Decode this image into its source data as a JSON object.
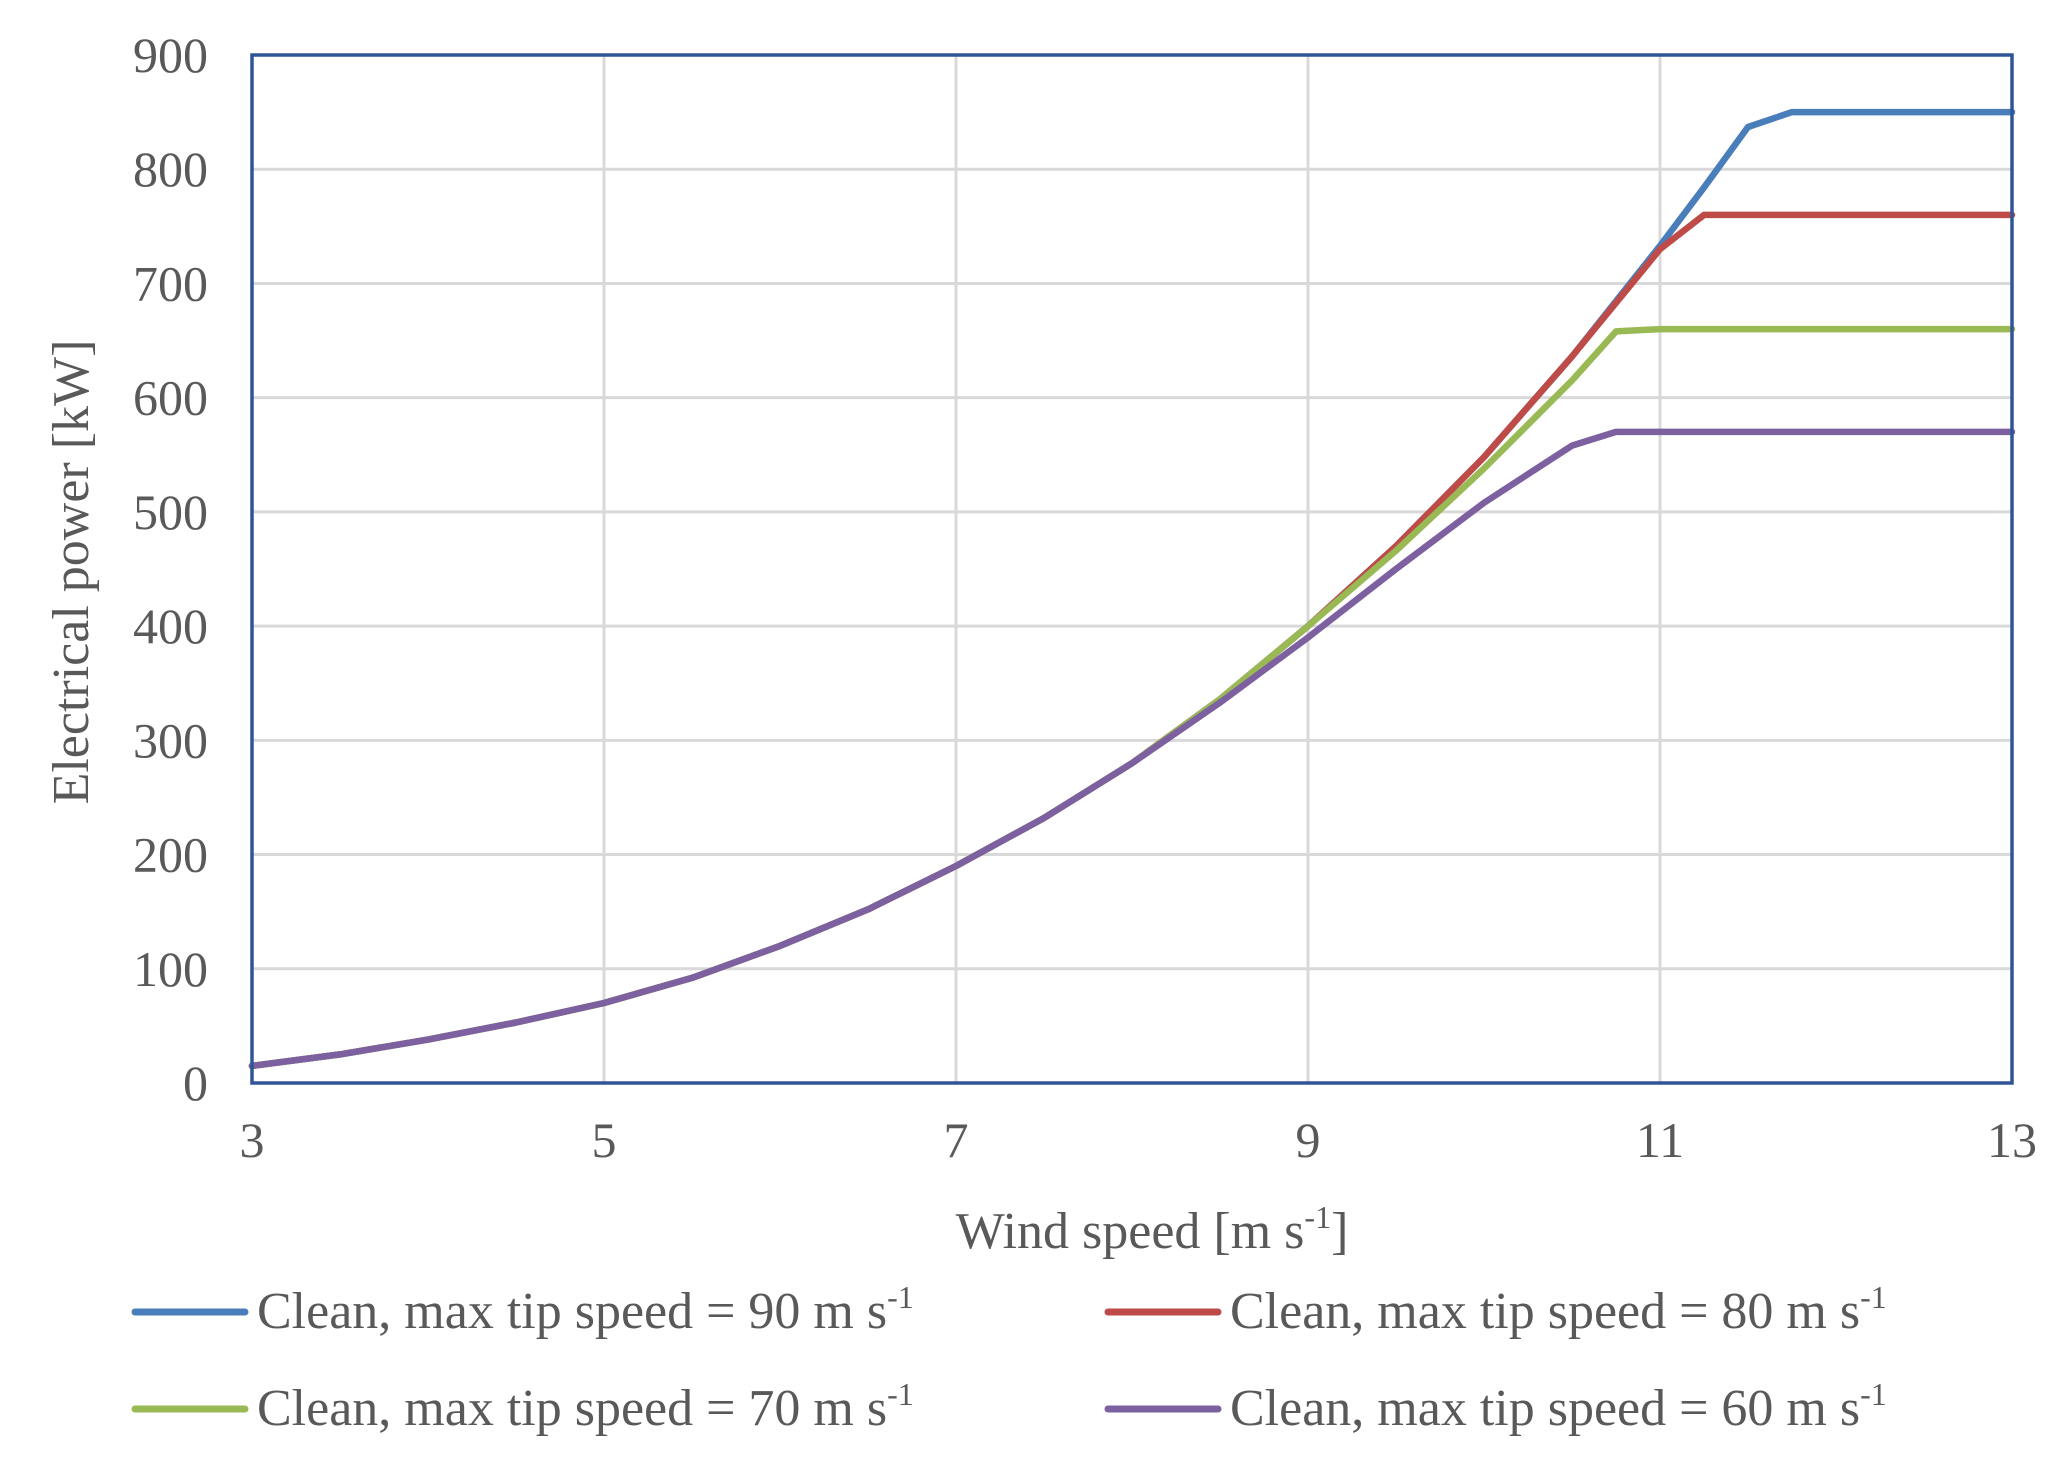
{
  "chart_data": {
    "type": "line",
    "xlabel": "Wind speed [m s",
    "xlabel_sup": "-1",
    "xlabel_end": "]",
    "ylabel": "Electrical power [kW]",
    "xlim": [
      3,
      13
    ],
    "ylim": [
      0,
      900
    ],
    "xticks": [
      3,
      5,
      7,
      9,
      11,
      13
    ],
    "yticks": [
      0,
      100,
      200,
      300,
      400,
      500,
      600,
      700,
      800,
      900
    ],
    "grid": true,
    "legend_position": "bottom",
    "series": [
      {
        "name": "Clean, max tip speed = 90 m s",
        "name_sup": "-1",
        "color": "#4a7ebb",
        "x": [
          3,
          3.5,
          4,
          4.5,
          5,
          5.5,
          6,
          6.5,
          7,
          7.5,
          8,
          8.5,
          9,
          9.5,
          10,
          10.5,
          11,
          11.25,
          11.5,
          11.75,
          12,
          12.5,
          13
        ],
        "y": [
          15,
          25,
          38,
          53,
          70,
          92,
          120,
          152,
          190,
          232,
          280,
          336,
          400,
          470,
          548,
          636,
          733,
          784,
          837,
          850,
          850,
          850,
          850
        ]
      },
      {
        "name": "Clean, max tip speed = 80 m s",
        "name_sup": "-1",
        "color": "#be4b48",
        "x": [
          3,
          3.5,
          4,
          4.5,
          5,
          5.5,
          6,
          6.5,
          7,
          7.5,
          8,
          8.5,
          9,
          9.5,
          10,
          10.5,
          11,
          11.25,
          11.5,
          12,
          12.5,
          13
        ],
        "y": [
          15,
          25,
          38,
          53,
          70,
          92,
          120,
          152,
          190,
          232,
          280,
          336,
          400,
          470,
          548,
          636,
          730,
          760,
          760,
          760,
          760,
          760
        ]
      },
      {
        "name": "Clean, max tip speed = 70 m s",
        "name_sup": "-1",
        "color": "#98b954",
        "x": [
          3,
          3.5,
          4,
          4.5,
          5,
          5.5,
          6,
          6.5,
          7,
          7.5,
          8,
          8.5,
          9,
          9.5,
          10,
          10.5,
          10.75,
          11,
          11.5,
          12,
          12.5,
          13
        ],
        "y": [
          15,
          25,
          38,
          53,
          70,
          92,
          120,
          152,
          190,
          232,
          280,
          336,
          400,
          466,
          538,
          615,
          658,
          660,
          660,
          660,
          660,
          660
        ]
      },
      {
        "name": "Clean, max tip speed = 60 m s",
        "name_sup": "-1",
        "color": "#7d60a0",
        "x": [
          3,
          3.5,
          4,
          4.5,
          5,
          5.5,
          6,
          6.5,
          7,
          7.5,
          8,
          8.5,
          9,
          9.5,
          10,
          10.5,
          10.75,
          11,
          11.5,
          12,
          12.5,
          13
        ],
        "y": [
          15,
          25,
          38,
          53,
          70,
          92,
          120,
          152,
          190,
          232,
          280,
          333,
          390,
          450,
          508,
          558,
          570,
          570,
          570,
          570,
          570,
          570
        ]
      }
    ]
  }
}
